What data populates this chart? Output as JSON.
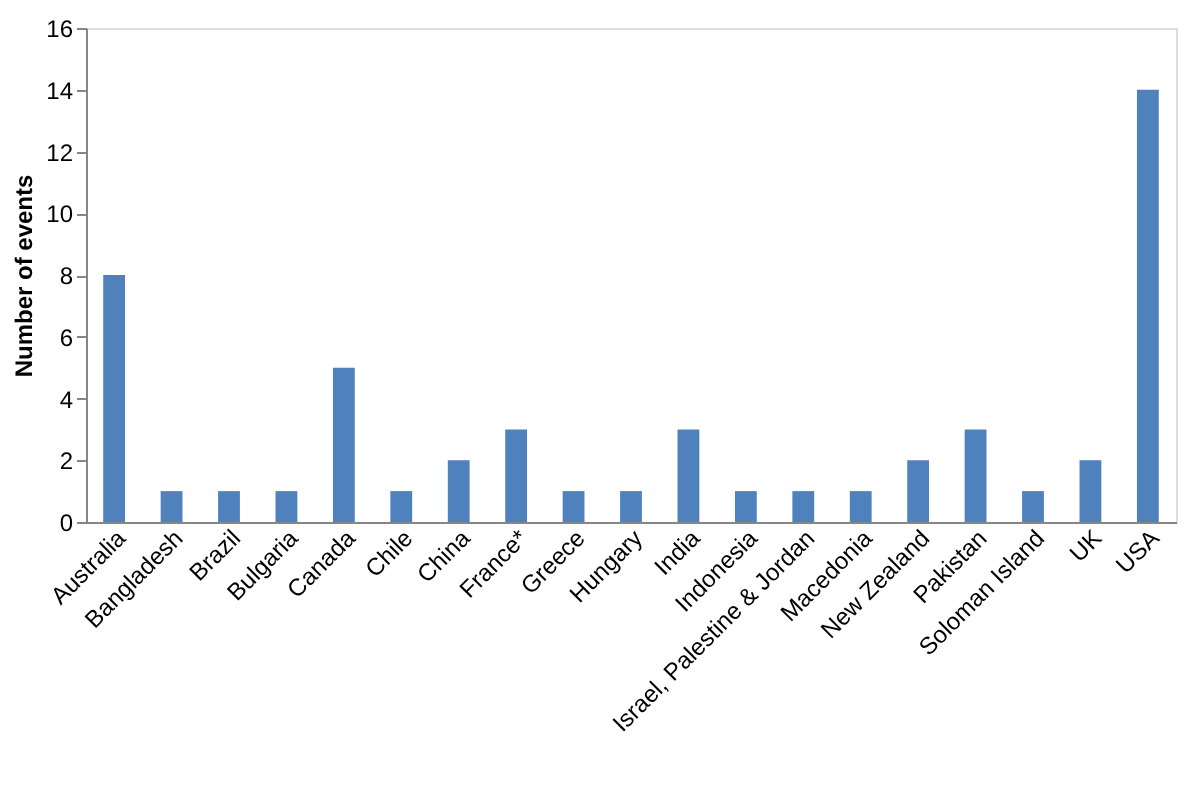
{
  "chart_data": {
    "type": "bar",
    "ylabel": "Number of events",
    "categories": [
      "Australia",
      "Bangladesh",
      "Brazil",
      "Bulgaria",
      "Canada",
      "Chile",
      "China",
      "France*",
      "Greece",
      "Hungary",
      "India",
      "Indonesia",
      "Israel, Palestine & Jordan",
      "Macedonia",
      "New Zealand",
      "Pakistan",
      "Soloman Island",
      "UK",
      "USA"
    ],
    "values": [
      8,
      1,
      1,
      1,
      5,
      1,
      2,
      3,
      1,
      1,
      3,
      1,
      1,
      1,
      2,
      3,
      1,
      2,
      14
    ],
    "color": "#4f81bd",
    "ylim": [
      0,
      16
    ],
    "yticks": [
      0,
      2,
      4,
      6,
      8,
      10,
      12,
      14,
      16
    ],
    "grid": false
  }
}
